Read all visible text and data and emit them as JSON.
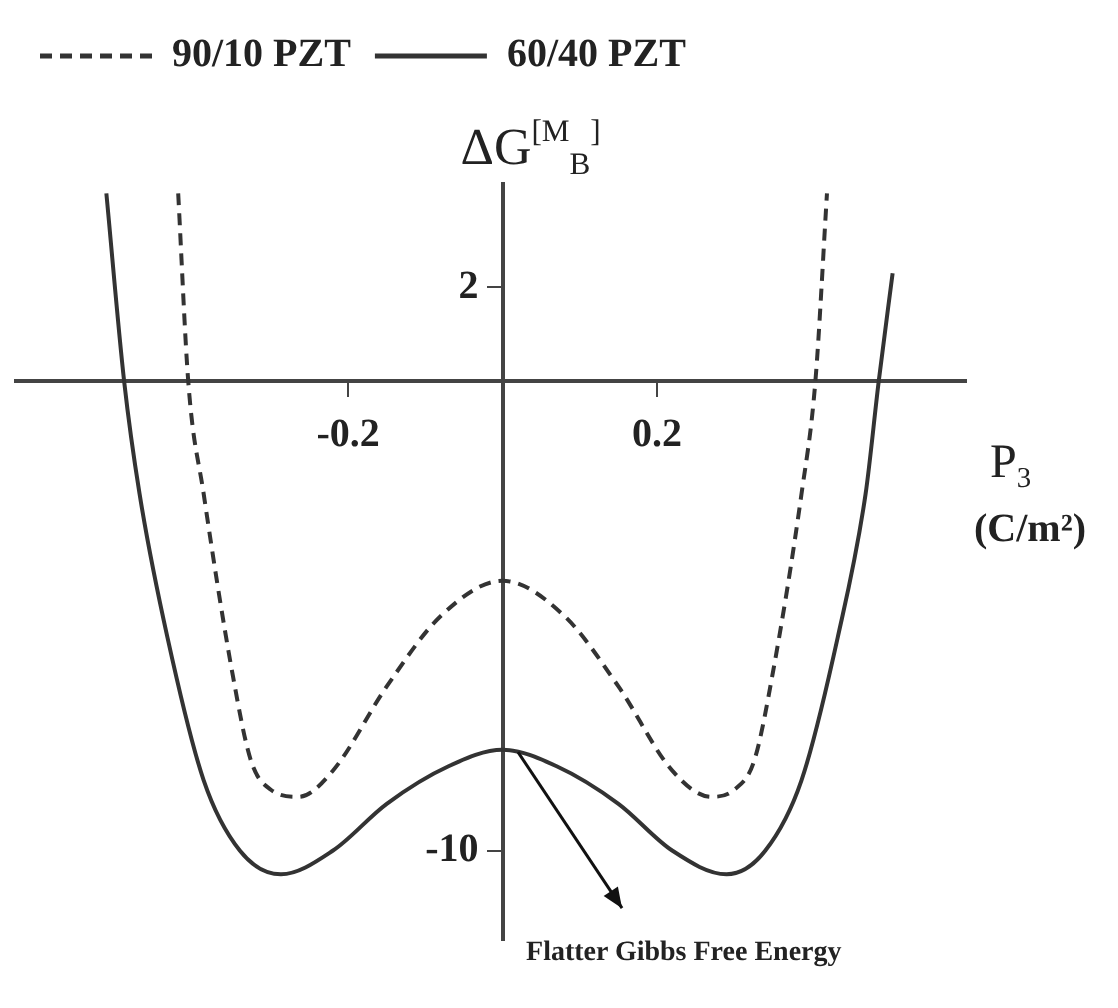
{
  "chart_data": {
    "type": "line",
    "xlabel": "P$_{3}$ (C/m²)",
    "ylabel": "ΔG$^{[M}$$_{B}$$^{]}$",
    "xlim": [
      -0.63,
      0.6
    ],
    "ylim": [
      -11.9,
      4.2
    ],
    "xticks": [
      -0.2,
      0.2
    ],
    "yticks": [
      2,
      -10
    ],
    "grid": false,
    "legend": "top",
    "marker": "none",
    "series": [
      {
        "name": "90/10 PZT",
        "color": "#333333",
        "line_style": "dashed",
        "x": [
          -0.42,
          -0.407,
          -0.387,
          -0.35,
          -0.326,
          -0.3,
          -0.264,
          -0.22,
          -0.15,
          -0.08,
          0,
          0.08,
          0.15,
          0.22,
          0.27,
          0.3,
          0.326,
          0.35,
          0.387,
          0.405,
          0.42
        ],
        "values": [
          4,
          0,
          -2.4,
          -6.2,
          -8.07,
          -8.7,
          -8.85,
          -8.3,
          -6.5,
          -5,
          -4.25,
          -5,
          -6.5,
          -8.3,
          -8.85,
          -8.7,
          -8.07,
          -6.2,
          -2.4,
          0,
          4
        ]
      },
      {
        "name": "60/40 PZT",
        "color": "#333333",
        "line_style": "solid",
        "x": [
          -0.513,
          -0.49,
          -0.47,
          -0.434,
          -0.387,
          -0.34,
          -0.287,
          -0.22,
          -0.15,
          -0.07,
          0,
          0.07,
          0.15,
          0.22,
          0.29,
          0.34,
          0.387,
          0.434,
          0.47,
          0.487,
          0.505
        ],
        "values": [
          4,
          0,
          -2.4,
          -5.45,
          -8.5,
          -10,
          -10.5,
          -10,
          -9,
          -8.2,
          -7.85,
          -8.2,
          -9,
          -10,
          -10.5,
          -10,
          -8.5,
          -5.45,
          -2.4,
          0,
          2.3
        ]
      }
    ],
    "annotations": [
      {
        "text": "Flatter Gibbs Free Energy",
        "x": 0.02,
        "y": -7.9
      }
    ]
  }
}
